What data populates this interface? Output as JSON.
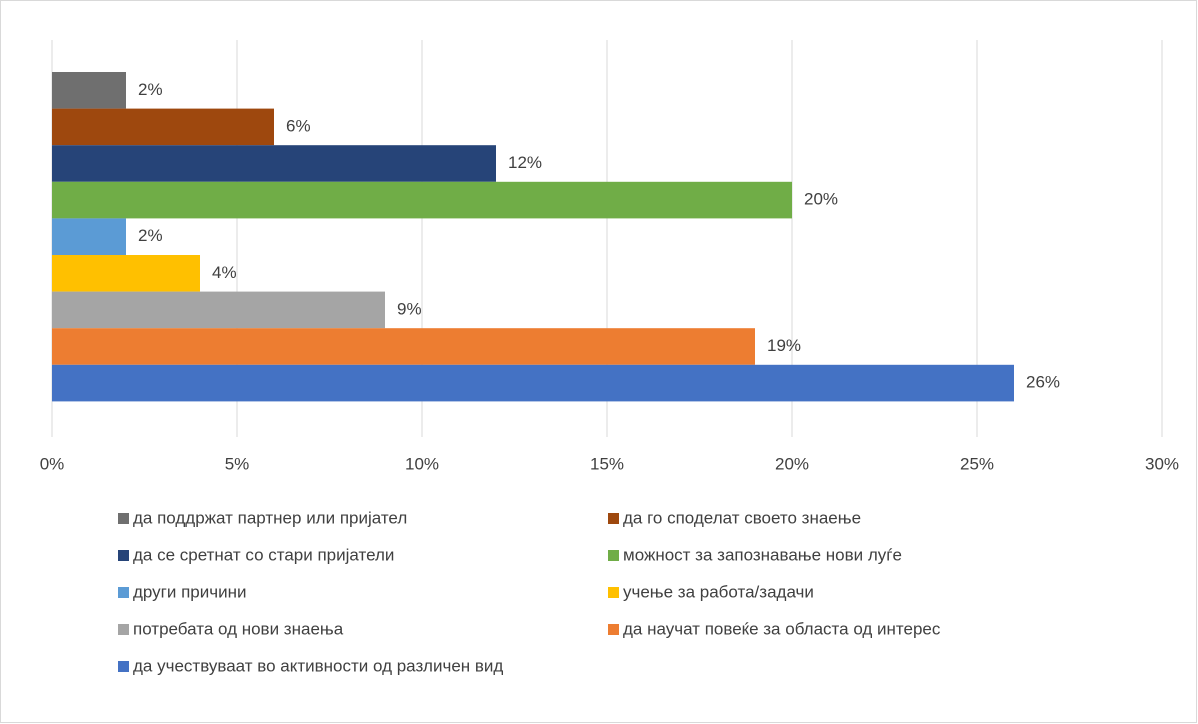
{
  "chart_data": {
    "type": "bar",
    "orientation": "horizontal",
    "grid": true,
    "legend": "bottom",
    "xlim": [
      0,
      30
    ],
    "xticks": [
      {
        "value": 0,
        "label": "0%"
      },
      {
        "value": 5,
        "label": "5%"
      },
      {
        "value": 10,
        "label": "10%"
      },
      {
        "value": 15,
        "label": "15%"
      },
      {
        "value": 20,
        "label": "20%"
      },
      {
        "value": 25,
        "label": "25%"
      },
      {
        "value": 30,
        "label": "30%"
      }
    ],
    "series": [
      {
        "name": "да поддржат партнер или пријател",
        "color": "#6f6f6f",
        "values": [
          2
        ],
        "value_labels": [
          "2%"
        ]
      },
      {
        "name": "да го споделат своето знаење",
        "color": "#9e480e",
        "values": [
          6
        ],
        "value_labels": [
          "6%"
        ]
      },
      {
        "name": "да се сретнат со стари пријатели",
        "color": "#264478",
        "values": [
          12
        ],
        "value_labels": [
          "12%"
        ]
      },
      {
        "name": "можност за запознавање нови луѓе",
        "color": "#70ad47",
        "values": [
          20
        ],
        "value_labels": [
          "20%"
        ]
      },
      {
        "name": "други причини",
        "color": "#5b9bd5",
        "values": [
          2
        ],
        "value_labels": [
          "2%"
        ]
      },
      {
        "name": "учење за работа/задачи",
        "color": "#ffc000",
        "values": [
          4
        ],
        "value_labels": [
          "4%"
        ]
      },
      {
        "name": "потребата од нови знаења",
        "color": "#a5a5a5",
        "values": [
          9
        ],
        "value_labels": [
          "9%"
        ]
      },
      {
        "name": "да научат повеќе за областа од интерес",
        "color": "#ed7d31",
        "values": [
          19
        ],
        "value_labels": [
          "19%"
        ]
      },
      {
        "name": "да учествуваат во активности од различен вид",
        "color": "#4472c4",
        "values": [
          26
        ],
        "value_labels": [
          "26%"
        ]
      }
    ]
  }
}
